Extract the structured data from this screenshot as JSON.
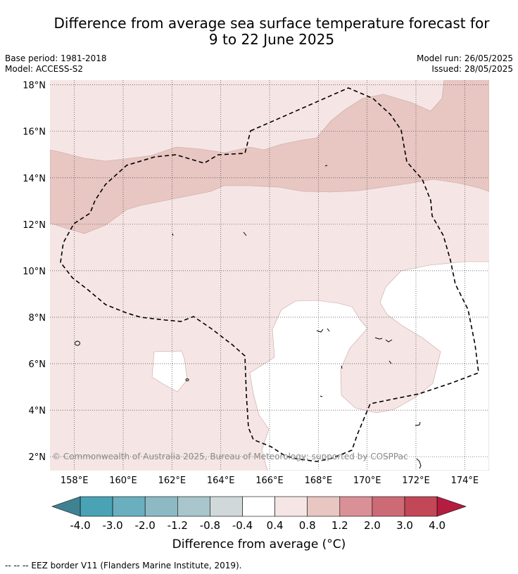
{
  "title_line1": "Difference from average sea surface temperature forecast for",
  "title_line2": "9 to 22 June 2025",
  "meta": {
    "base_period": "Base period: 1981-2018",
    "model": "Model: ACCESS-S2",
    "model_run": "Model run: 26/05/2025",
    "issued": "Issued: 28/05/2025"
  },
  "map": {
    "lat_labels": [
      "18°N",
      "16°N",
      "14°N",
      "12°N",
      "10°N",
      "8°N",
      "6°N",
      "4°N",
      "2°N"
    ],
    "lon_labels": [
      "158°E",
      "160°E",
      "162°E",
      "164°E",
      "166°E",
      "168°E",
      "170°E",
      "172°E",
      "174°E"
    ],
    "lat_range": [
      1.4,
      18.2
    ],
    "lon_range": [
      157.0,
      175.0
    ],
    "copyright": "© Commonwealth of Australia 2025, Bureau of Meteorology; supported by COSPPac",
    "colors": {
      "band_0.4_0.8": "#f5e6e5",
      "band_0.8_1.2": "#e8c6c2",
      "band_-0.4_0.4": "#ffffff",
      "eez_line": "#000000"
    }
  },
  "colorbar": {
    "labels": [
      "-4.0",
      "-3.0",
      "-2.0",
      "-1.2",
      "-0.8",
      "-0.4",
      "0.4",
      "0.8",
      "1.2",
      "2.0",
      "3.0",
      "4.0"
    ],
    "colors": [
      "#4aa2b5",
      "#6aafbf",
      "#8cb9c4",
      "#a8c6cb",
      "#d1d8da",
      "#ffffff",
      "#f5e6e5",
      "#e8c6c2",
      "#d99096",
      "#cc6b76",
      "#c24757"
    ],
    "under_color": "#3f8393",
    "over_color": "#b51d40",
    "title": "Difference from average (°C)"
  },
  "eez_note": "-- -- -- EEZ border V11 (Flanders Marine Institute, 2019)."
}
